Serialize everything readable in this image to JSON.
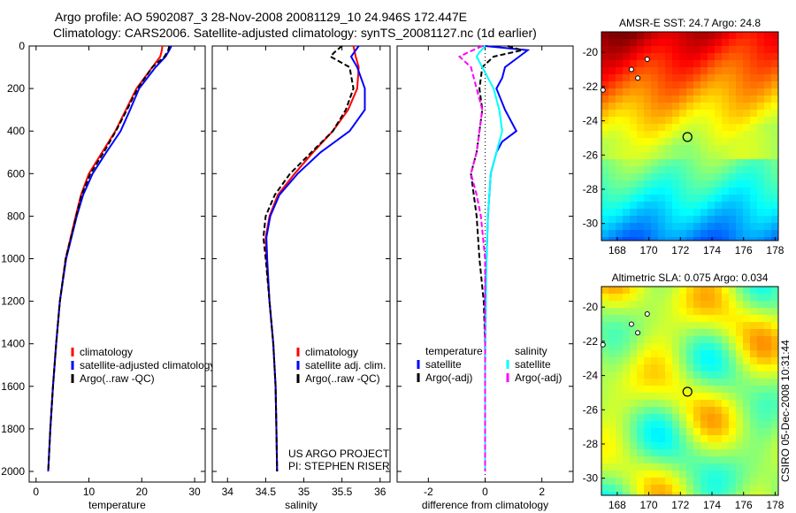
{
  "title_line1": "Argo profile: AO 5902087_3 28-Nov-2008 20081129_10 24.946S 172.447E",
  "title_line2": "Climatology: CARS2006. Satellite-adjusted climatology: synTS_20081127.nc (1d earlier)",
  "footer_stamp": "CSIRO 05-Dec-2008 10:31:44",
  "colors": {
    "clim": "#ff0000",
    "sat": "#0000ff",
    "argo": "#000000",
    "sal_sat": "#00ffff",
    "sal_argo": "#ff00ff"
  },
  "chart_data": [
    {
      "type": "line",
      "xlabel": "temperature",
      "ylabel": "",
      "xlim": [
        -1.3,
        32
      ],
      "ylim": [
        2050,
        0
      ],
      "xticks": [
        0,
        10,
        20,
        30
      ],
      "yticks": [
        0,
        200,
        400,
        600,
        800,
        1000,
        1200,
        1400,
        1600,
        1800,
        2000
      ],
      "legend": [
        "climatology",
        "satellite-adjusted climatology",
        "Argo(..raw -QC)"
      ],
      "legend_placement": "lower-right",
      "series": [
        {
          "name": "climatology",
          "color": "#ff0000",
          "dash": false,
          "depth": [
            0,
            20,
            50,
            100,
            200,
            300,
            400,
            500,
            600,
            700,
            800,
            1000,
            1200,
            1400,
            1600,
            1800,
            2000
          ],
          "values": [
            23.9,
            23.8,
            23.5,
            22.0,
            19.0,
            17.0,
            15.0,
            12.5,
            10.0,
            8.5,
            7.5,
            5.6,
            4.5,
            3.8,
            3.2,
            2.7,
            2.3
          ]
        },
        {
          "name": "satellite-adjusted climatology",
          "color": "#0000ff",
          "dash": false,
          "depth": [
            0,
            20,
            50,
            100,
            200,
            300,
            400,
            500,
            600,
            700,
            800,
            1000,
            1200,
            1400,
            1600,
            1800,
            2000
          ],
          "values": [
            25.6,
            25.2,
            24.5,
            22.6,
            19.5,
            17.8,
            16.0,
            13.3,
            10.7,
            8.9,
            7.7,
            5.7,
            4.5,
            3.8,
            3.2,
            2.7,
            2.3
          ]
        },
        {
          "name": "Argo(..raw -QC)",
          "color": "#000000",
          "dash": true,
          "depth": [
            0,
            20,
            50,
            100,
            200,
            300,
            400,
            500,
            600,
            700,
            800,
            1000,
            1200,
            1400,
            1600,
            1800,
            2000
          ],
          "values": [
            25.2,
            25.0,
            24.3,
            22.0,
            19.2,
            17.2,
            15.1,
            12.8,
            10.3,
            8.6,
            7.6,
            5.6,
            4.5,
            3.8,
            3.2,
            2.7,
            2.3
          ]
        }
      ]
    },
    {
      "type": "line",
      "xlabel": "salinity",
      "xlim": [
        33.8,
        36.13
      ],
      "ylim": [
        2050,
        0
      ],
      "xticks": [
        34,
        34.5,
        35,
        35.5,
        36
      ],
      "legend": [
        "climatology",
        "satellite adj. clim.",
        "Argo(..raw -QC)"
      ],
      "legend_placement": "lower-right",
      "annotation": [
        "US ARGO PROJECT",
        "PI: STEPHEN RISER"
      ],
      "series": [
        {
          "name": "climatology",
          "color": "#ff0000",
          "dash": false,
          "depth": [
            0,
            50,
            100,
            200,
            300,
            400,
            500,
            600,
            700,
            800,
            900,
            1000,
            1200,
            1400,
            1600,
            1800,
            2000
          ],
          "values": [
            35.65,
            35.68,
            35.72,
            35.7,
            35.58,
            35.38,
            35.12,
            34.88,
            34.66,
            34.55,
            34.5,
            34.51,
            34.55,
            34.6,
            34.63,
            34.64,
            34.65
          ]
        },
        {
          "name": "satellite adj. clim.",
          "color": "#0000ff",
          "dash": false,
          "depth": [
            0,
            50,
            100,
            200,
            300,
            400,
            500,
            600,
            700,
            800,
            900,
            1000,
            1200,
            1400,
            1600,
            1800,
            2000
          ],
          "values": [
            35.72,
            35.62,
            35.7,
            35.8,
            35.8,
            35.6,
            35.22,
            34.92,
            34.68,
            34.56,
            34.51,
            34.52,
            34.55,
            34.6,
            34.63,
            34.64,
            34.65
          ]
        },
        {
          "name": "Argo(..raw -QC)",
          "color": "#000000",
          "dash": true,
          "depth": [
            0,
            30,
            50,
            100,
            200,
            300,
            400,
            500,
            600,
            700,
            800,
            900,
            1000,
            1200,
            1400,
            1600,
            1800,
            2000
          ],
          "values": [
            35.5,
            35.4,
            35.35,
            35.6,
            35.65,
            35.55,
            35.38,
            35.1,
            34.82,
            34.62,
            34.5,
            34.47,
            34.5,
            34.55,
            34.6,
            34.63,
            34.64,
            34.65
          ]
        }
      ]
    },
    {
      "type": "line",
      "xlabel": "difference from climatology",
      "xlim": [
        -3.1,
        3.1
      ],
      "ylim": [
        2050,
        0
      ],
      "xticks": [
        -2,
        0,
        2
      ],
      "legend_temperature_header": "temperature",
      "legend_salinity_header": "salinity",
      "legend": [
        "satellite",
        "Argo(-adj)",
        "satellite",
        "Argo(-adj)"
      ],
      "series": [
        {
          "name": "temperature satellite",
          "color": "#0000ff",
          "dash": false,
          "depth": [
            0,
            20,
            50,
            100,
            150,
            200,
            300,
            400,
            450,
            500,
            600,
            800,
            1000,
            1200,
            1500,
            2000
          ],
          "values": [
            0,
            1.5,
            1.2,
            0.7,
            0.6,
            0.4,
            0.7,
            1.1,
            0.6,
            0.4,
            0.2,
            0.1,
            0.05,
            0.0,
            0.0,
            0.0
          ]
        },
        {
          "name": "temperature Argo(-adj)",
          "color": "#000000",
          "dash": true,
          "depth": [
            0,
            20,
            50,
            100,
            200,
            300,
            400,
            500,
            600,
            700,
            800,
            1000,
            1200,
            1400,
            2000
          ],
          "values": [
            0.8,
            1.3,
            0.3,
            -0.1,
            -0.2,
            -0.1,
            -0.2,
            -0.3,
            -0.5,
            -0.4,
            -0.3,
            -0.2,
            -0.05,
            0.0,
            0.0
          ]
        },
        {
          "name": "salinity satellite",
          "color": "#00ffff",
          "dash": false,
          "depth": [
            0,
            30,
            50,
            100,
            200,
            300,
            400,
            500,
            600,
            800,
            1000,
            1500,
            2000
          ],
          "values": [
            0.0,
            -0.2,
            -0.3,
            -0.1,
            0.3,
            0.5,
            0.6,
            0.4,
            0.2,
            0.1,
            0.05,
            0.0,
            0.0
          ]
        },
        {
          "name": "salinity Argo(-adj)",
          "color": "#ff00ff",
          "dash": true,
          "depth": [
            0,
            30,
            50,
            100,
            200,
            300,
            400,
            500,
            600,
            700,
            800,
            1000,
            1200,
            2000
          ],
          "values": [
            -0.1,
            -0.6,
            -0.9,
            -0.5,
            -0.3,
            -0.1,
            -0.2,
            -0.3,
            -0.5,
            -0.3,
            -0.15,
            0.0,
            0.0,
            0.0
          ]
        }
      ]
    },
    {
      "type": "heatmap",
      "title": "AMSR-E SST: 24.7 Argo: 24.8",
      "xlim": [
        167,
        178.2
      ],
      "ylim": [
        -31,
        -18.8
      ],
      "xticks": [
        168,
        170,
        172,
        174,
        176,
        178
      ],
      "yticks": [
        -20,
        -22,
        -24,
        -26,
        -28,
        -30
      ],
      "marker": {
        "lon": 172.447,
        "lat": -24.946
      }
    },
    {
      "type": "heatmap",
      "title": "Altimetric SLA: 0.075 Argo: 0.034",
      "xlim": [
        167,
        178.2
      ],
      "ylim": [
        -31,
        -18.8
      ],
      "xticks": [
        168,
        170,
        172,
        174,
        176,
        178
      ],
      "yticks": [
        -20,
        -22,
        -24,
        -26,
        -28,
        -30
      ],
      "marker": {
        "lon": 172.447,
        "lat": -24.946
      }
    }
  ]
}
